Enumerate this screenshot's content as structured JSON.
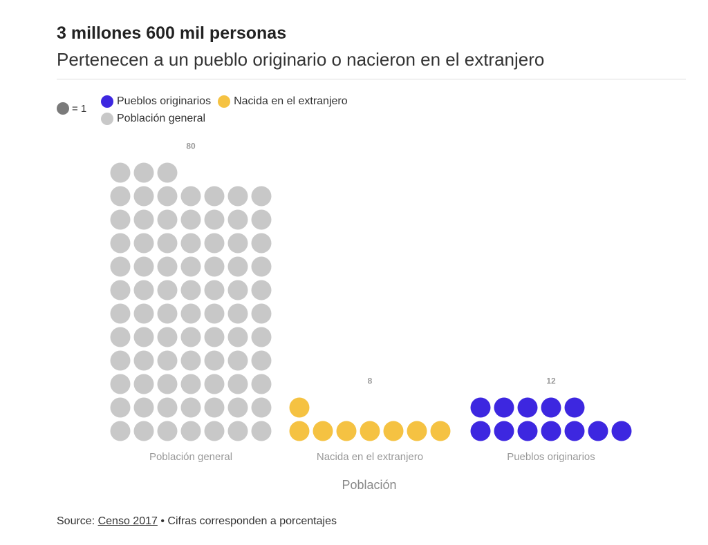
{
  "title": "3 millones 600 mil personas",
  "subtitle": "Pertenecen a un pueblo originario o nacieron en el extranjero",
  "legend": {
    "unit_label": "= 1",
    "items": [
      {
        "label": "Pueblos originarios",
        "color": "#3d27e0"
      },
      {
        "label": "Nacida en el extranjero",
        "color": "#f5c242"
      },
      {
        "label": "Población general",
        "color": "#c8c8c8"
      }
    ]
  },
  "chart_data": {
    "type": "waffle",
    "unit": 1,
    "xlabel": "Población",
    "categories": [
      "Población general",
      "Nacida en el extranjero",
      "Pueblos originarios"
    ],
    "values": [
      80,
      8,
      12
    ],
    "colors": [
      "#c8c8c8",
      "#f5c242",
      "#3d27e0"
    ],
    "columns_per_row": 7
  },
  "source": {
    "prefix": "Source: ",
    "link_text": "Censo 2017",
    "suffix": " • Cifras corresponden a porcentajes"
  }
}
